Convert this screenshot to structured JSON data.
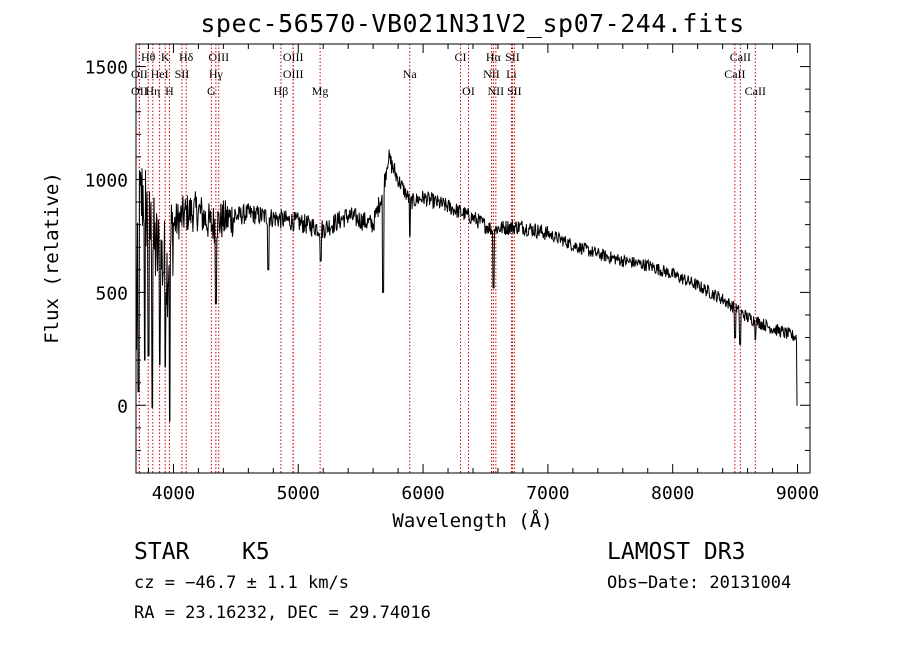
{
  "chart_data": {
    "type": "line",
    "title": "spec-56570-VB021N31V2_sp07-244.fits",
    "xlabel": "Wavelength (Å)",
    "ylabel": "Flux (relative)",
    "xlim": [
      3700,
      9100
    ],
    "ylim": [
      -300,
      1600
    ],
    "xticks": [
      4000,
      5000,
      6000,
      7000,
      8000,
      9000
    ],
    "xtick_labels": [
      "4000",
      "5000",
      "6000",
      "7000",
      "8000",
      "9000"
    ],
    "yticks": [
      0,
      500,
      1000,
      1500
    ],
    "ytick_labels": [
      "0",
      "500",
      "1000",
      "1500"
    ],
    "line_color": "#000000",
    "marker_color": "#cc0000",
    "spectrum_anchors": [
      [
        3700,
        200
      ],
      [
        3720,
        850
      ],
      [
        3760,
        950
      ],
      [
        3800,
        800
      ],
      [
        3850,
        700
      ],
      [
        3900,
        650
      ],
      [
        3950,
        600
      ],
      [
        4000,
        800
      ],
      [
        4100,
        850
      ],
      [
        4200,
        860
      ],
      [
        4300,
        800
      ],
      [
        4400,
        820
      ],
      [
        4600,
        850
      ],
      [
        4800,
        830
      ],
      [
        5000,
        810
      ],
      [
        5200,
        780
      ],
      [
        5400,
        840
      ],
      [
        5500,
        820
      ],
      [
        5600,
        800
      ],
      [
        5680,
        950
      ],
      [
        5720,
        1100
      ],
      [
        5800,
        1000
      ],
      [
        5900,
        900
      ],
      [
        6000,
        920
      ],
      [
        6200,
        880
      ],
      [
        6400,
        830
      ],
      [
        6550,
        780
      ],
      [
        6700,
        790
      ],
      [
        6800,
        790
      ],
      [
        7000,
        760
      ],
      [
        7200,
        710
      ],
      [
        7400,
        670
      ],
      [
        7600,
        640
      ],
      [
        7800,
        620
      ],
      [
        8000,
        580
      ],
      [
        8200,
        530
      ],
      [
        8400,
        470
      ],
      [
        8600,
        390
      ],
      [
        8800,
        340
      ],
      [
        8950,
        310
      ],
      [
        9000,
        300
      ]
    ],
    "spectrum_dips": [
      [
        3720,
        60
      ],
      [
        3770,
        200
      ],
      [
        3800,
        220
      ],
      [
        3830,
        -10
      ],
      [
        3890,
        180
      ],
      [
        3935,
        170
      ],
      [
        3970,
        -70
      ],
      [
        4340,
        450
      ],
      [
        4760,
        600
      ],
      [
        5180,
        640
      ],
      [
        5680,
        500
      ],
      [
        5895,
        750
      ],
      [
        6564,
        520
      ],
      [
        8500,
        300
      ],
      [
        8540,
        270
      ],
      [
        8662,
        290
      ],
      [
        9000,
        0
      ]
    ],
    "line_markers": [
      {
        "label": "Hθ",
        "wavelength": 3798,
        "row": 0
      },
      {
        "label": "K",
        "wavelength": 3934,
        "row": 0
      },
      {
        "label": "Hδ",
        "wavelength": 4102,
        "row": 0
      },
      {
        "label": "OIII",
        "wavelength": 4363,
        "row": 0
      },
      {
        "label": "OIII",
        "wavelength": 4959,
        "row": 0
      },
      {
        "label": "CI",
        "wavelength": 6300,
        "row": 0
      },
      {
        "label": "Hα",
        "wavelength": 6563,
        "row": 0
      },
      {
        "label": "SII",
        "wavelength": 6716,
        "row": 0
      },
      {
        "label": "CaII",
        "wavelength": 8542,
        "row": 0
      },
      {
        "label": "OII",
        "wavelength": 3727,
        "row": 1
      },
      {
        "label": "HeI",
        "wavelength": 3889,
        "row": 1
      },
      {
        "label": "SII",
        "wavelength": 4068,
        "row": 1
      },
      {
        "label": "Hγ",
        "wavelength": 4340,
        "row": 1
      },
      {
        "label": "OIII",
        "wavelength": 4959,
        "row": 1
      },
      {
        "label": "Na",
        "wavelength": 5893,
        "row": 1
      },
      {
        "label": "NII",
        "wavelength": 6548,
        "row": 1
      },
      {
        "label": "Li",
        "wavelength": 6708,
        "row": 1
      },
      {
        "label": "CaII",
        "wavelength": 8498,
        "row": 1
      },
      {
        "label": "OII",
        "wavelength": 3727,
        "row": 2
      },
      {
        "label": "Hη",
        "wavelength": 3835,
        "row": 2
      },
      {
        "label": "H",
        "wavelength": 3968,
        "row": 2
      },
      {
        "label": "G",
        "wavelength": 4304,
        "row": 2
      },
      {
        "label": "Hβ",
        "wavelength": 4861,
        "row": 2
      },
      {
        "label": "Mg",
        "wavelength": 5175,
        "row": 2
      },
      {
        "label": "OI",
        "wavelength": 6364,
        "row": 2
      },
      {
        "label": "NII",
        "wavelength": 6583,
        "row": 2
      },
      {
        "label": "SII",
        "wavelength": 6731,
        "row": 2
      },
      {
        "label": "CaII",
        "wavelength": 8662,
        "row": 2
      }
    ]
  },
  "info": {
    "object_class": "STAR",
    "subclass": "K5",
    "survey": "LAMOST DR3",
    "cz": "cz = −46.7 ± 1.1 km/s",
    "obs_date": "Obs−Date: 20131004",
    "radec": "RA =  23.16232, DEC =  29.74016"
  }
}
